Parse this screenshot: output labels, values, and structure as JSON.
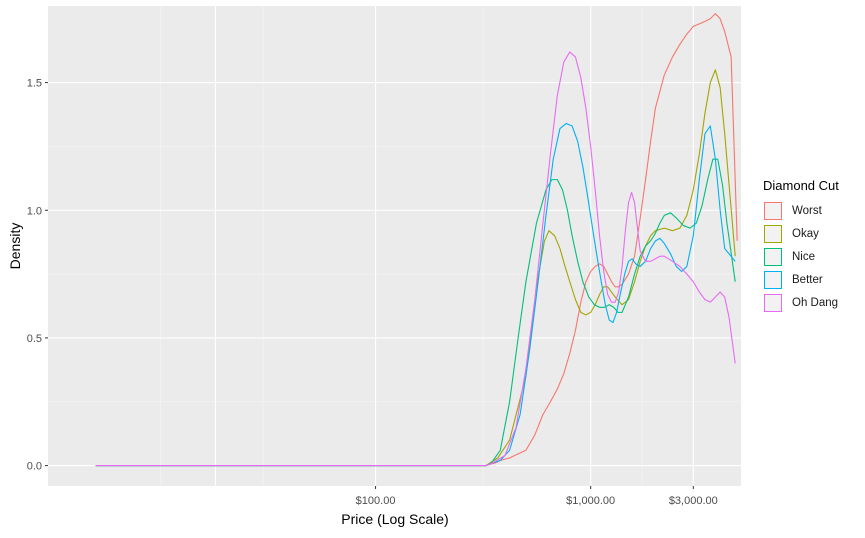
{
  "chart_data": {
    "type": "line",
    "title": "",
    "xlabel": "Price (Log Scale)",
    "ylabel": "Density",
    "x_scale": "log10",
    "xlim": [
      3,
      5000
    ],
    "ylim": [
      -0.08,
      1.8
    ],
    "x_ticks": [
      {
        "value": 100,
        "label": "$100.00"
      },
      {
        "value": 1000,
        "label": "$1,000.00"
      },
      {
        "value": 3000,
        "label": "$3,000.00"
      }
    ],
    "y_ticks": [
      {
        "value": 0.0,
        "label": "0.0"
      },
      {
        "value": 0.5,
        "label": "0.5"
      },
      {
        "value": 1.0,
        "label": "1.0"
      },
      {
        "value": 1.5,
        "label": "1.5"
      }
    ],
    "grid": true,
    "legend": {
      "title": "Diamond Cut",
      "position": "right"
    },
    "series": [
      {
        "name": "Worst",
        "color": "#F8766D",
        "x": [
          5,
          326,
          340,
          360,
          380,
          420,
          500,
          550,
          600,
          650,
          700,
          750,
          800,
          850,
          900,
          950,
          1000,
          1050,
          1100,
          1150,
          1200,
          1250,
          1300,
          1350,
          1400,
          1500,
          1600,
          1700,
          1800,
          1900,
          2000,
          2200,
          2400,
          2600,
          2800,
          3000,
          3200,
          3400,
          3600,
          3800,
          4000,
          4200,
          4500,
          4800
        ],
        "y": [
          0,
          0,
          0.005,
          0.01,
          0.02,
          0.03,
          0.06,
          0.12,
          0.2,
          0.25,
          0.3,
          0.36,
          0.44,
          0.53,
          0.64,
          0.72,
          0.76,
          0.78,
          0.79,
          0.78,
          0.75,
          0.72,
          0.7,
          0.7,
          0.71,
          0.75,
          0.82,
          0.97,
          1.12,
          1.27,
          1.4,
          1.53,
          1.6,
          1.65,
          1.69,
          1.72,
          1.73,
          1.74,
          1.75,
          1.77,
          1.75,
          1.7,
          1.6,
          0.88
        ]
      },
      {
        "name": "Okay",
        "color": "#A3A500",
        "x": [
          5,
          326,
          340,
          370,
          420,
          500,
          560,
          610,
          640,
          680,
          720,
          760,
          800,
          850,
          900,
          950,
          1000,
          1050,
          1100,
          1150,
          1200,
          1300,
          1400,
          1500,
          1600,
          1700,
          1800,
          1900,
          2000,
          2200,
          2400,
          2600,
          2800,
          3000,
          3200,
          3400,
          3600,
          3800,
          4000,
          4200,
          4400,
          4700
        ],
        "y": [
          0,
          0,
          0.01,
          0.03,
          0.1,
          0.35,
          0.7,
          0.88,
          0.92,
          0.9,
          0.85,
          0.78,
          0.72,
          0.65,
          0.6,
          0.59,
          0.6,
          0.63,
          0.67,
          0.7,
          0.7,
          0.66,
          0.63,
          0.65,
          0.72,
          0.8,
          0.86,
          0.9,
          0.92,
          0.93,
          0.92,
          0.93,
          0.98,
          1.08,
          1.22,
          1.38,
          1.5,
          1.55,
          1.48,
          1.3,
          1.1,
          0.82
        ]
      },
      {
        "name": "Nice",
        "color": "#00BF7D",
        "x": [
          5,
          326,
          345,
          380,
          420,
          460,
          500,
          560,
          620,
          660,
          700,
          740,
          780,
          820,
          870,
          920,
          980,
          1040,
          1100,
          1160,
          1220,
          1280,
          1340,
          1400,
          1500,
          1600,
          1700,
          1800,
          1900,
          2000,
          2100,
          2200,
          2350,
          2500,
          2700,
          2900,
          3100,
          3300,
          3500,
          3700,
          3900,
          4100,
          4300,
          4700
        ],
        "y": [
          0,
          0,
          0.01,
          0.06,
          0.25,
          0.5,
          0.72,
          0.95,
          1.08,
          1.12,
          1.12,
          1.08,
          1.0,
          0.9,
          0.8,
          0.72,
          0.66,
          0.63,
          0.62,
          0.62,
          0.63,
          0.62,
          0.6,
          0.6,
          0.66,
          0.75,
          0.82,
          0.86,
          0.88,
          0.91,
          0.95,
          0.98,
          0.99,
          0.97,
          0.94,
          0.93,
          0.95,
          1.02,
          1.12,
          1.2,
          1.2,
          1.1,
          0.95,
          0.72
        ]
      },
      {
        "name": "Better",
        "color": "#00B0F6",
        "x": [
          5,
          326,
          350,
          380,
          420,
          470,
          520,
          570,
          620,
          670,
          720,
          770,
          820,
          870,
          920,
          970,
          1020,
          1070,
          1120,
          1170,
          1220,
          1270,
          1320,
          1380,
          1440,
          1500,
          1560,
          1620,
          1700,
          1800,
          1900,
          2000,
          2100,
          2200,
          2350,
          2500,
          2650,
          2800,
          3000,
          3200,
          3400,
          3600,
          3800,
          4000,
          4200,
          4700
        ],
        "y": [
          0,
          0,
          0.01,
          0.02,
          0.06,
          0.2,
          0.45,
          0.72,
          0.98,
          1.2,
          1.32,
          1.34,
          1.33,
          1.27,
          1.17,
          1.05,
          0.93,
          0.82,
          0.72,
          0.63,
          0.57,
          0.56,
          0.6,
          0.68,
          0.75,
          0.8,
          0.81,
          0.79,
          0.78,
          0.8,
          0.85,
          0.88,
          0.89,
          0.87,
          0.83,
          0.78,
          0.76,
          0.78,
          0.9,
          1.12,
          1.3,
          1.33,
          1.2,
          1.0,
          0.85,
          0.8
        ]
      },
      {
        "name": "Oh Dang",
        "color": "#E76BF3",
        "x": [
          5,
          326,
          350,
          400,
          450,
          500,
          550,
          600,
          650,
          700,
          750,
          800,
          850,
          900,
          950,
          1000,
          1050,
          1100,
          1150,
          1200,
          1250,
          1300,
          1350,
          1400,
          1450,
          1500,
          1550,
          1600,
          1650,
          1700,
          1800,
          1900,
          2000,
          2100,
          2200,
          2400,
          2600,
          2800,
          3000,
          3200,
          3400,
          3600,
          3800,
          4000,
          4200,
          4400,
          4700
        ],
        "y": [
          0,
          0,
          0.01,
          0.04,
          0.15,
          0.38,
          0.65,
          0.95,
          1.22,
          1.45,
          1.58,
          1.62,
          1.6,
          1.52,
          1.4,
          1.25,
          1.08,
          0.9,
          0.76,
          0.67,
          0.64,
          0.64,
          0.68,
          0.78,
          0.92,
          1.03,
          1.07,
          1.03,
          0.93,
          0.84,
          0.8,
          0.8,
          0.81,
          0.82,
          0.82,
          0.8,
          0.78,
          0.75,
          0.72,
          0.68,
          0.65,
          0.64,
          0.66,
          0.68,
          0.66,
          0.58,
          0.4
        ]
      }
    ]
  }
}
